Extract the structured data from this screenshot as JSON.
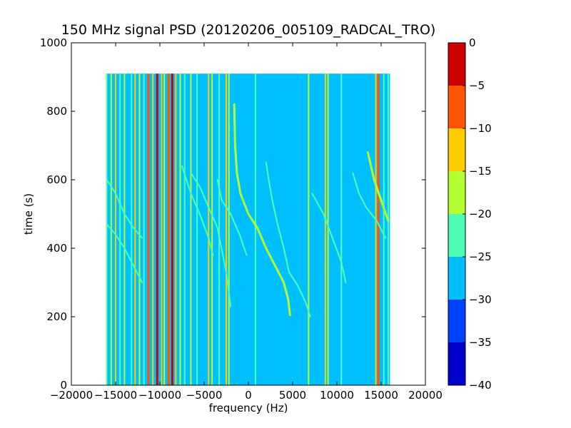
{
  "chart_data": {
    "type": "heatmap",
    "title": "150 MHz signal PSD (20120206_005109_RADCAL_TRO)",
    "xlabel": "frequency (Hz)",
    "ylabel": "time (s)",
    "xlim": [
      -20000,
      20000
    ],
    "ylim": [
      0,
      1000
    ],
    "x_ticks": [
      -20000,
      -15000,
      -10000,
      -5000,
      0,
      5000,
      10000,
      15000,
      20000
    ],
    "x_tick_labels": [
      "−20000",
      "−15000",
      "−10000",
      "−5000",
      "0",
      "5000",
      "10000",
      "15000",
      "20000"
    ],
    "y_ticks": [
      0,
      200,
      400,
      600,
      800,
      1000
    ],
    "y_tick_labels": [
      "0",
      "200",
      "400",
      "600",
      "800",
      "1000"
    ],
    "data_extent": {
      "x": [
        -16000,
        16000
      ],
      "y": [
        0,
        910
      ]
    },
    "background_level_db": -27.5,
    "colorbar": {
      "levels": [
        -40,
        -35,
        -30,
        -25,
        -20,
        -15,
        -10,
        -5,
        0
      ],
      "tick_labels": [
        "−40",
        "−35",
        "−30",
        "−25",
        "−20",
        "−15",
        "−10",
        "−5",
        "0"
      ],
      "colors": [
        "#0000c8",
        "#0040ff",
        "#00bfff",
        "#4dffb3",
        "#b3ff33",
        "#ffcc00",
        "#ff5500",
        "#cc0000"
      ]
    },
    "steady_lines": [
      {
        "x": -16000,
        "level_db": -22
      },
      {
        "x": -15500,
        "level_db": -17
      },
      {
        "x": -15000,
        "level_db": -12
      },
      {
        "x": -14500,
        "level_db": -22
      },
      {
        "x": -14000,
        "level_db": -17
      },
      {
        "x": -13200,
        "level_db": -22
      },
      {
        "x": -12800,
        "level_db": -12
      },
      {
        "x": -12300,
        "level_db": -17
      },
      {
        "x": -11800,
        "level_db": -22
      },
      {
        "x": -11300,
        "level_db": -7
      },
      {
        "x": -10800,
        "level_db": -12
      },
      {
        "x": -10300,
        "level_db": -2
      },
      {
        "x": -9800,
        "level_db": -12
      },
      {
        "x": -9500,
        "level_db": -17
      },
      {
        "x": -9000,
        "level_db": -7
      },
      {
        "x": -8600,
        "level_db": -2
      },
      {
        "x": -8200,
        "level_db": -12
      },
      {
        "x": -7700,
        "level_db": -17
      },
      {
        "x": -7200,
        "level_db": -22
      },
      {
        "x": -6500,
        "level_db": -17
      },
      {
        "x": -5800,
        "level_db": -22
      },
      {
        "x": -4500,
        "level_db": -12
      },
      {
        "x": -4100,
        "level_db": -17
      },
      {
        "x": -3300,
        "level_db": -22
      },
      {
        "x": -2500,
        "level_db": -12
      },
      {
        "x": -2200,
        "level_db": -17
      },
      {
        "x": 800,
        "level_db": -22
      },
      {
        "x": 6800,
        "level_db": -17
      },
      {
        "x": 8700,
        "level_db": -12
      },
      {
        "x": 9000,
        "level_db": -17
      },
      {
        "x": 10500,
        "level_db": -22
      },
      {
        "x": 14400,
        "level_db": -12
      },
      {
        "x": 14700,
        "level_db": -7
      },
      {
        "x": 15300,
        "level_db": -22
      },
      {
        "x": 15800,
        "level_db": -22
      }
    ],
    "drifting_tracks": [
      {
        "level_db": -17,
        "points": [
          [
            -1600,
            820
          ],
          [
            -1500,
            700
          ],
          [
            -1300,
            620
          ],
          [
            -900,
            560
          ],
          [
            0,
            500
          ],
          [
            1000,
            460
          ],
          [
            2000,
            400
          ],
          [
            3000,
            350
          ],
          [
            4000,
            300
          ],
          [
            4500,
            250
          ],
          [
            4700,
            205
          ]
        ]
      },
      {
        "level_db": -22,
        "points": [
          [
            2000,
            650
          ],
          [
            2300,
            600
          ],
          [
            2700,
            540
          ],
          [
            3300,
            470
          ],
          [
            4000,
            400
          ],
          [
            4600,
            330
          ],
          [
            5600,
            290
          ],
          [
            6500,
            240
          ],
          [
            7000,
            200
          ]
        ]
      },
      {
        "level_db": -22,
        "points": [
          [
            -3500,
            600
          ],
          [
            -3000,
            540
          ],
          [
            -2000,
            500
          ],
          [
            -1000,
            440
          ],
          [
            -200,
            380
          ]
        ]
      },
      {
        "level_db": -22,
        "points": [
          [
            -6500,
            620
          ],
          [
            -5500,
            580
          ],
          [
            -4500,
            520
          ],
          [
            -3500,
            460
          ],
          [
            -2500,
            330
          ],
          [
            -2000,
            230
          ]
        ]
      },
      {
        "level_db": -22,
        "points": [
          [
            -16000,
            600
          ],
          [
            -15000,
            560
          ],
          [
            -14000,
            500
          ],
          [
            -13000,
            460
          ],
          [
            -12000,
            430
          ]
        ]
      },
      {
        "level_db": -22,
        "points": [
          [
            -16000,
            470
          ],
          [
            -15000,
            440
          ],
          [
            -14000,
            400
          ],
          [
            -13000,
            350
          ],
          [
            -12000,
            300
          ]
        ]
      },
      {
        "level_db": -22,
        "points": [
          [
            -7500,
            640
          ],
          [
            -6500,
            560
          ],
          [
            -5500,
            500
          ],
          [
            -4500,
            430
          ],
          [
            -4000,
            380
          ]
        ]
      },
      {
        "level_db": -22,
        "points": [
          [
            7200,
            560
          ],
          [
            8500,
            500
          ],
          [
            9500,
            430
          ],
          [
            10500,
            360
          ],
          [
            11000,
            300
          ]
        ]
      },
      {
        "level_db": -22,
        "points": [
          [
            11800,
            620
          ],
          [
            12500,
            560
          ],
          [
            13300,
            520
          ],
          [
            14500,
            480
          ],
          [
            15500,
            430
          ]
        ]
      },
      {
        "level_db": -17,
        "points": [
          [
            13500,
            680
          ],
          [
            14200,
            600
          ],
          [
            15000,
            540
          ],
          [
            15800,
            480
          ]
        ]
      }
    ]
  }
}
